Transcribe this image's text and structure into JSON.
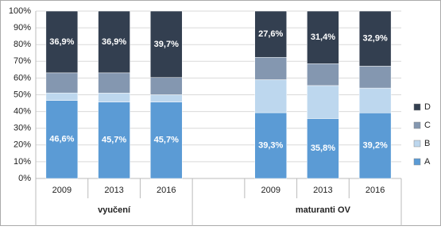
{
  "chart_data": {
    "type": "stacked_bar",
    "categories": [
      "2009",
      "2013",
      "2016",
      null,
      "2009",
      "2013",
      "2016"
    ],
    "groups": [
      "vyučení",
      "maturanti OV"
    ],
    "series": [
      {
        "name": "A",
        "color": "#5b9bd5",
        "values": [
          46.6,
          45.7,
          45.7,
          null,
          39.3,
          35.8,
          39.2
        ],
        "value_labels": [
          "46,6%",
          "45,7%",
          "45,7%",
          null,
          "39,3%",
          "35,8%",
          "39,2%"
        ]
      },
      {
        "name": "B",
        "color": "#bdd7ee",
        "values": [
          4.5,
          5.3,
          4.3,
          null,
          19.7,
          19.7,
          14.8
        ]
      },
      {
        "name": "C",
        "color": "#8497b0",
        "values": [
          12.0,
          12.1,
          10.3,
          null,
          13.4,
          13.1,
          13.1
        ]
      },
      {
        "name": "D",
        "color": "#333f50",
        "values": [
          36.9,
          36.9,
          39.7,
          null,
          27.6,
          31.4,
          32.9
        ],
        "value_labels": [
          "36,9%",
          "36,9%",
          "39,7%",
          null,
          "27,6%",
          "31,4%",
          "32,9%"
        ]
      }
    ],
    "ylim": [
      0,
      100
    ],
    "yticks": [
      {
        "value": 0,
        "label": "0%"
      },
      {
        "value": 10,
        "label": "10%"
      },
      {
        "value": 20,
        "label": "20%"
      },
      {
        "value": 30,
        "label": "30%"
      },
      {
        "value": 40,
        "label": "40%"
      },
      {
        "value": 50,
        "label": "50%"
      },
      {
        "value": 60,
        "label": "60%"
      },
      {
        "value": 70,
        "label": "70%"
      },
      {
        "value": 80,
        "label": "80%"
      },
      {
        "value": 90,
        "label": "90%"
      },
      {
        "value": 100,
        "label": "100%"
      }
    ],
    "grid": true,
    "legend": "right"
  }
}
